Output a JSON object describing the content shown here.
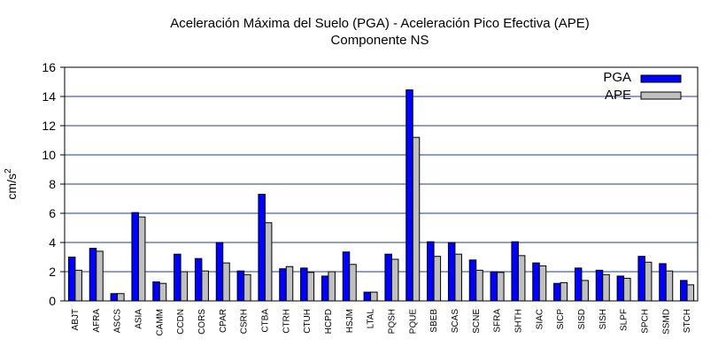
{
  "chart_data": {
    "type": "bar",
    "title_line1": "Aceleración Máxima del Suelo (PGA) -  Aceleración Pico Efectiva (APE)",
    "title_line2": "Componente NS",
    "ylabel_base": "cm/s",
    "ylabel_sup": "2",
    "xlabel": "",
    "ylim": [
      0,
      16
    ],
    "yticks": [
      "0",
      "2",
      "4",
      "6",
      "8",
      "10",
      "12",
      "14",
      "16"
    ],
    "grid": true,
    "legend_position": "top-right",
    "categories": [
      "ABJT",
      "AFRA",
      "ASCS",
      "ASIA",
      "CAMM",
      "CCDN",
      "CORS",
      "CPAR",
      "CSRH",
      "CTBA",
      "CTRH",
      "CTUH",
      "HCPD",
      "HSJM",
      "LTAL",
      "PQSH",
      "PQUE",
      "SBEB",
      "SCAS",
      "SCNE",
      "SFRA",
      "SHTH",
      "SIAC",
      "SICP",
      "SISD",
      "SISH",
      "SLPF",
      "SPCH",
      "SSMD",
      "STCH"
    ],
    "series": [
      {
        "name": "PGA",
        "color": "#0000ff",
        "values": [
          3.0,
          3.6,
          0.5,
          6.05,
          1.3,
          3.2,
          2.9,
          4.0,
          2.05,
          7.3,
          2.2,
          2.25,
          1.7,
          3.35,
          0.6,
          3.2,
          14.45,
          4.05,
          4.0,
          2.8,
          2.0,
          4.05,
          2.6,
          1.2,
          2.25,
          2.1,
          1.7,
          3.05,
          2.55,
          1.4
        ]
      },
      {
        "name": "APE",
        "color": "#c0c0c0",
        "values": [
          2.1,
          3.4,
          0.5,
          5.75,
          1.2,
          2.0,
          2.05,
          2.6,
          1.8,
          5.35,
          2.35,
          1.95,
          2.0,
          2.5,
          0.6,
          2.85,
          11.2,
          3.05,
          3.2,
          2.1,
          1.95,
          3.1,
          2.4,
          1.25,
          1.4,
          1.8,
          1.55,
          2.65,
          2.05,
          1.1
        ]
      }
    ]
  }
}
